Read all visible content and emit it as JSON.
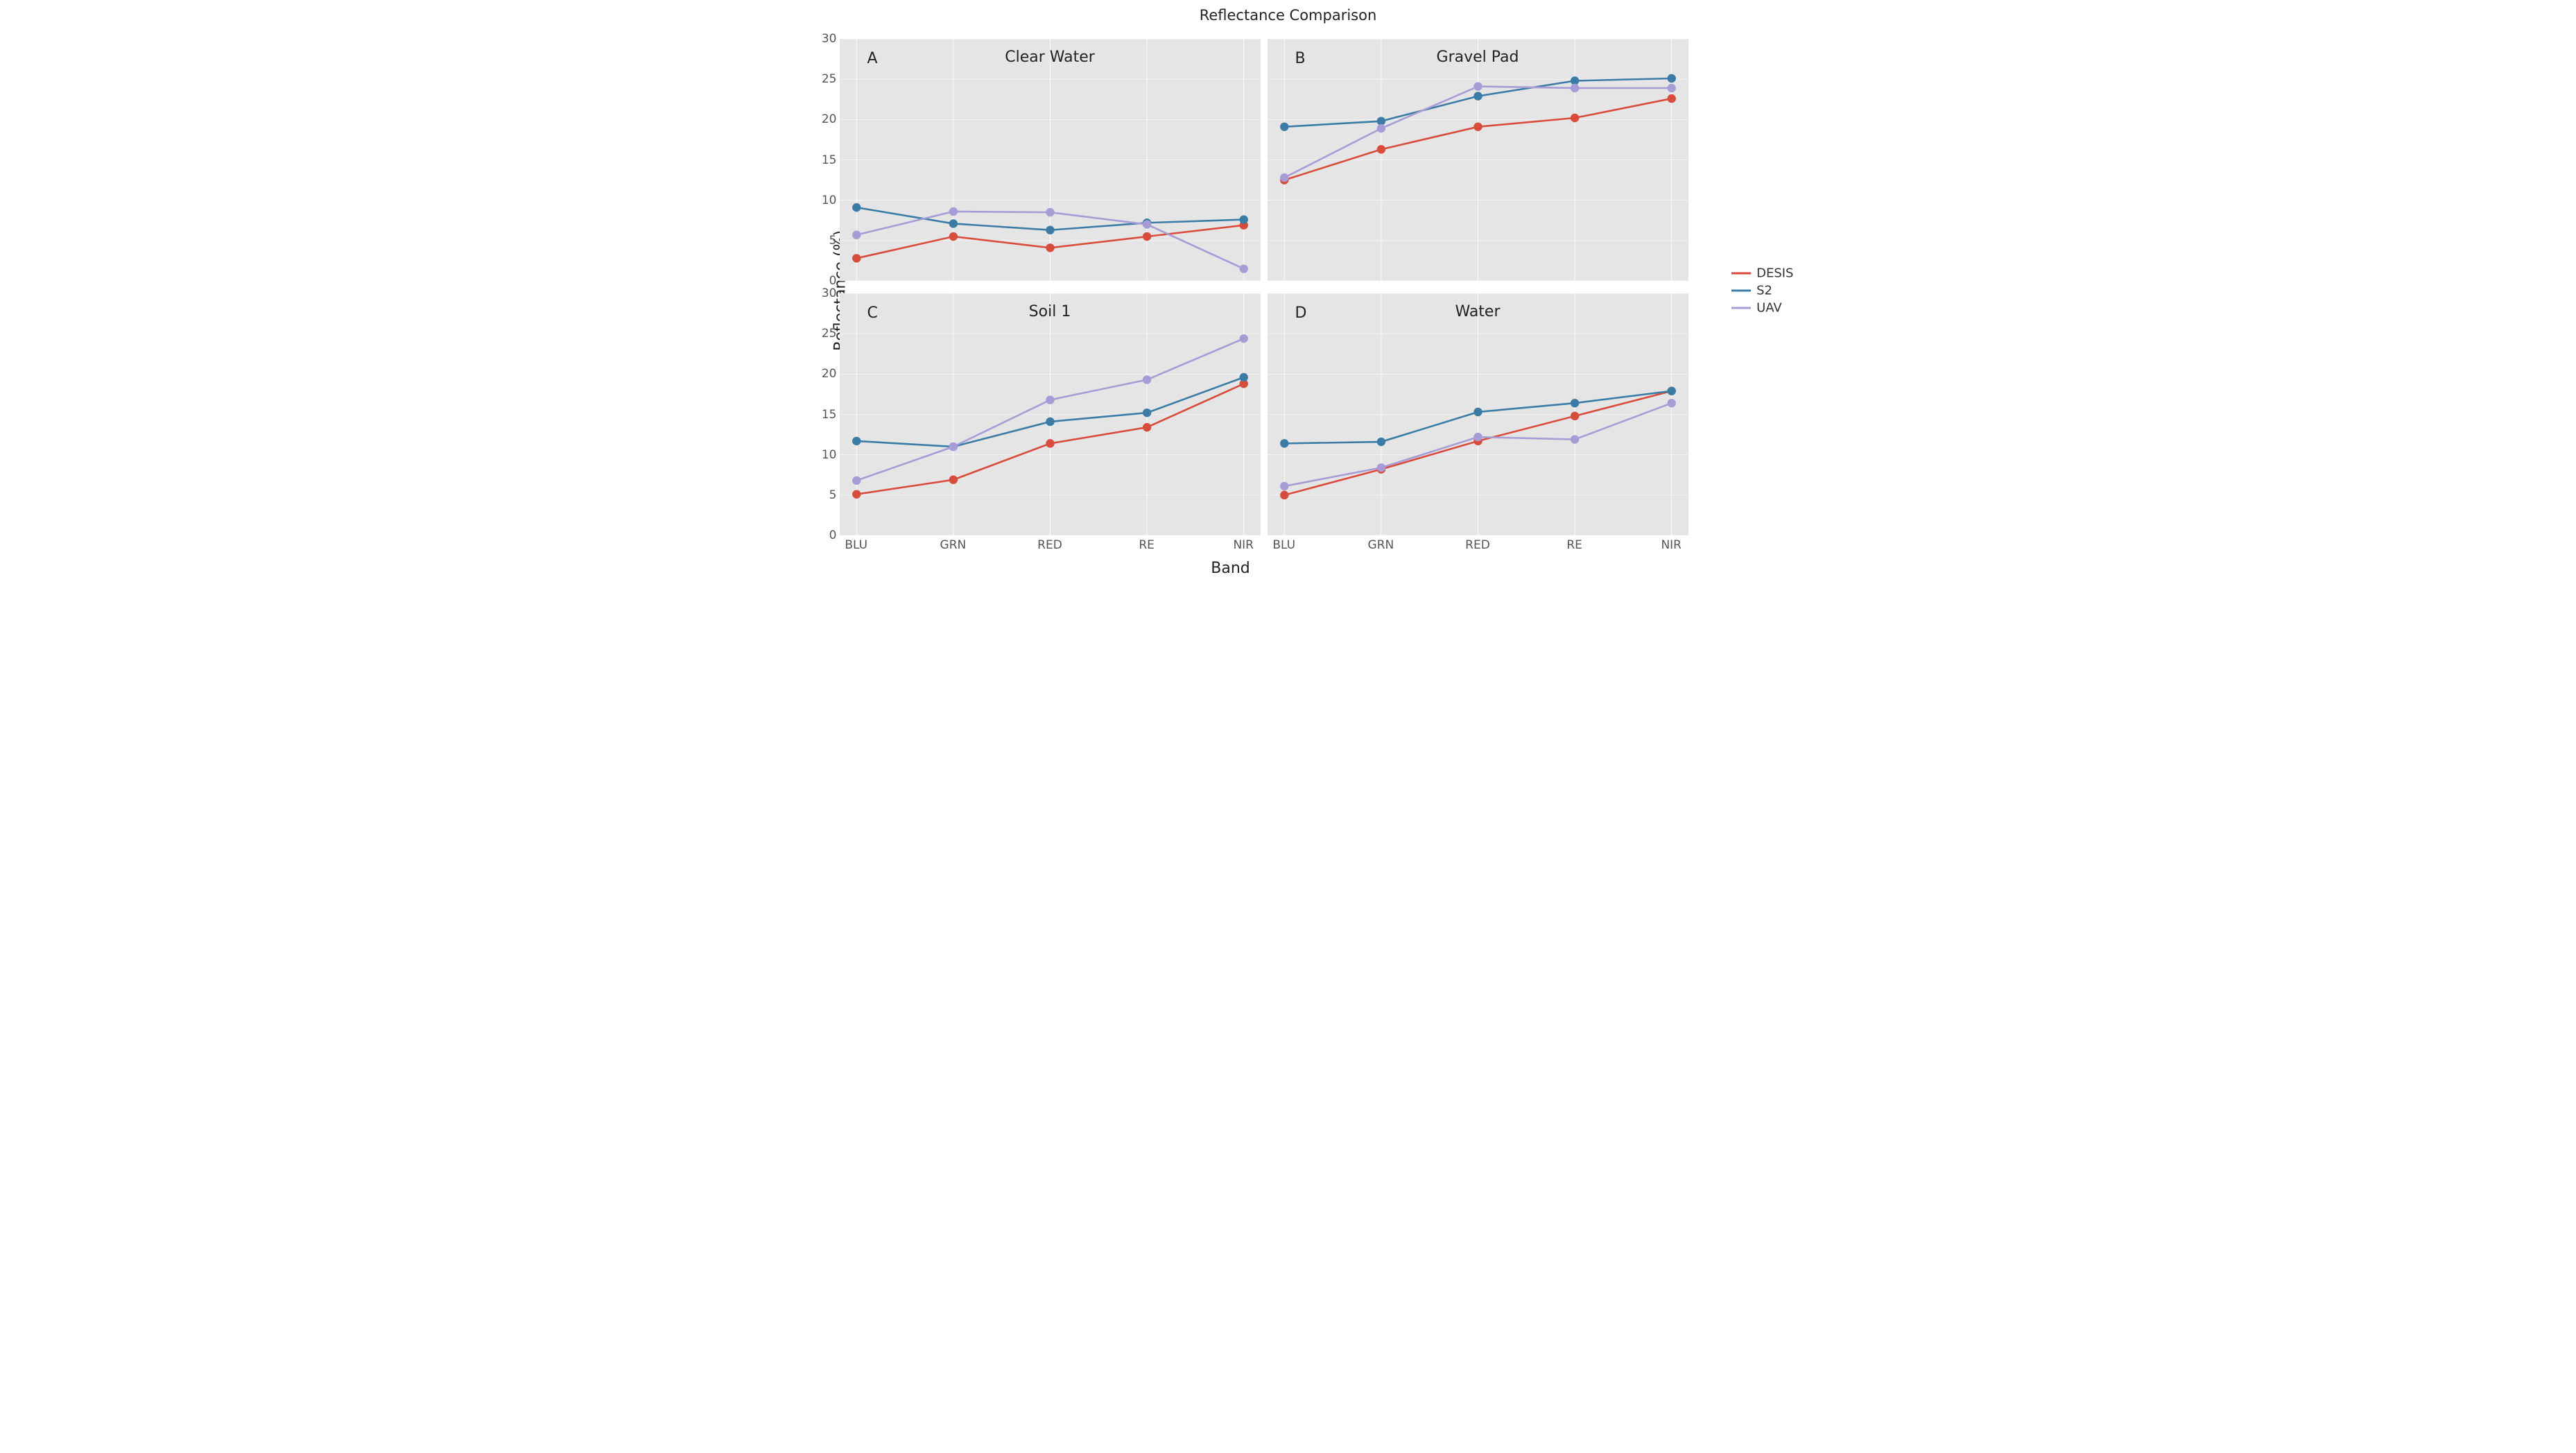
{
  "figure": {
    "suptitle": "Reflectance Comparison",
    "xlabel": "Band",
    "ylabel": "Reflectance (%)",
    "background_color": "#ffffff",
    "axes_facecolor": "#e5e5e5",
    "grid_color": "#ffffff",
    "text_color": "#222222",
    "ticklabel_color": "#555555",
    "suptitle_fontsize": 21,
    "label_fontsize": 22,
    "title_fontsize": 22,
    "panel_letter_fontsize": 22,
    "ticklabel_fontsize": 17,
    "legend_fontsize": 18,
    "layout": {
      "rows": 2,
      "cols": 2
    },
    "x_categories": [
      "BLU",
      "GRN",
      "RED",
      "RE",
      "NIR"
    ],
    "ylim": [
      0,
      30
    ],
    "yticks": [
      0,
      5,
      10,
      15,
      20,
      25,
      30
    ],
    "line_width": 2.6,
    "marker": {
      "style": "circle",
      "size": 6.2
    },
    "series_colors": {
      "DESIS": "#d94b3a",
      "S2": "#3a7ca5",
      "UAV": "#a79cd6"
    },
    "legend": {
      "items": [
        "DESIS",
        "S2",
        "UAV"
      ],
      "position": "center right"
    },
    "panels": [
      {
        "letter": "A",
        "title": "Clear Water",
        "show_yticklabels": true,
        "show_xticklabels": false,
        "series": {
          "DESIS": [
            2.8,
            5.5,
            4.1,
            5.5,
            6.9
          ],
          "S2": [
            9.1,
            7.1,
            6.3,
            7.2,
            7.6
          ],
          "UAV": [
            5.7,
            8.6,
            8.5,
            7.0,
            1.5
          ]
        }
      },
      {
        "letter": "B",
        "title": "Gravel Pad",
        "show_yticklabels": false,
        "show_xticklabels": false,
        "series": {
          "DESIS": [
            12.5,
            16.3,
            19.1,
            20.2,
            22.6
          ],
          "S2": [
            19.1,
            19.8,
            22.9,
            24.8,
            25.1
          ],
          "UAV": [
            12.8,
            18.9,
            24.1,
            23.9,
            23.9
          ]
        }
      },
      {
        "letter": "C",
        "title": "Soil 1",
        "show_yticklabels": true,
        "show_xticklabels": true,
        "series": {
          "DESIS": [
            5.1,
            6.9,
            11.4,
            13.4,
            18.8
          ],
          "S2": [
            11.7,
            11.0,
            14.1,
            15.2,
            19.6
          ],
          "UAV": [
            6.8,
            11.0,
            16.8,
            19.3,
            24.4
          ]
        }
      },
      {
        "letter": "D",
        "title": "Water",
        "show_yticklabels": false,
        "show_xticklabels": true,
        "series": {
          "DESIS": [
            5.0,
            8.2,
            11.7,
            14.8,
            17.9
          ],
          "S2": [
            11.4,
            11.6,
            15.3,
            16.4,
            17.9
          ],
          "UAV": [
            6.1,
            8.4,
            12.2,
            11.9,
            16.4
          ]
        }
      }
    ]
  }
}
